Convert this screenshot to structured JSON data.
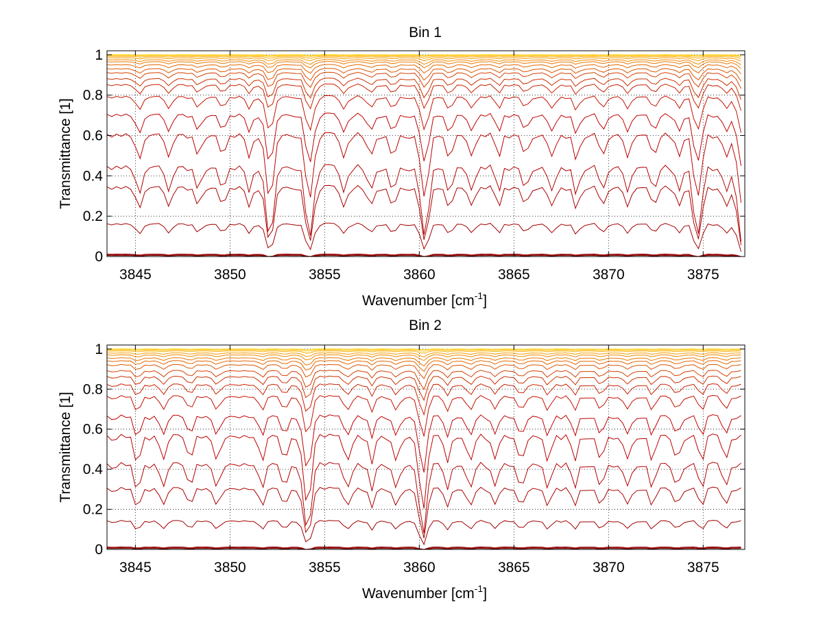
{
  "chart_data": [
    {
      "type": "line",
      "title": "Bin 1",
      "xlabel": "Wavenumber [cm",
      "xlabel_sup": "-1",
      "xlabel_tail": "]",
      "ylabel": "Transmittance [1]",
      "xlim": [
        3843.5,
        3877.2
      ],
      "ylim": [
        0,
        1.02
      ],
      "xticks": [
        3845,
        3850,
        3855,
        3860,
        3865,
        3870,
        3875
      ],
      "yticks": [
        0,
        0.2,
        0.4,
        0.6,
        0.8,
        1
      ],
      "ytick_labels": [
        "0",
        "0.2",
        "0.4",
        "0.6",
        "0.8",
        "1"
      ],
      "grid": "dotted",
      "line_profiles": {
        "x_step": 0.25,
        "strong_lines": [
          3852.1,
          3854.2,
          3860.3,
          3874.7,
          3877.0
        ],
        "medium_lines": [
          3845.2,
          3846.8,
          3848.3,
          3849.6,
          3851.0,
          3856.0,
          3857.4,
          3858.6,
          3861.6,
          3862.8,
          3864.2,
          3865.6,
          3867.0,
          3868.3,
          3869.7,
          3871.0,
          3872.4,
          3873.7,
          3876.2
        ]
      },
      "series_base_levels": [
        0.005,
        0.008,
        0.012,
        0.16,
        0.34,
        0.44,
        0.6,
        0.7,
        0.79,
        0.85,
        0.88,
        0.91,
        0.93,
        0.95,
        0.965,
        0.975,
        0.985,
        0.992,
        0.997,
        1.0
      ],
      "series_colors": [
        "#7f0000",
        "#8b0000",
        "#990000",
        "#a00000",
        "#aa0000",
        "#b30000",
        "#bb0000",
        "#c00000",
        "#c41000",
        "#c82000",
        "#cc3000",
        "#d54000",
        "#dd5500",
        "#e46600",
        "#ea7700",
        "#f08800",
        "#f59a00",
        "#f9ac00",
        "#fbbe00",
        "#ffd000"
      ]
    },
    {
      "type": "line",
      "title": "Bin 2",
      "xlabel": "Wavenumber [cm",
      "xlabel_sup": "-1",
      "xlabel_tail": "]",
      "ylabel": "Transmittance [1]",
      "xlim": [
        3843.5,
        3877.2
      ],
      "ylim": [
        0,
        1.02
      ],
      "xticks": [
        3845,
        3850,
        3855,
        3860,
        3865,
        3870,
        3875
      ],
      "yticks": [
        0,
        0.2,
        0.4,
        0.6,
        0.8,
        1
      ],
      "ytick_labels": [
        "0",
        "0.2",
        "0.4",
        "0.6",
        "0.8",
        "1"
      ],
      "grid": "dotted",
      "line_profiles": {
        "x_step": 0.25,
        "strong_lines": [
          3854.1,
          3860.2
        ],
        "medium_lines": [
          3845.1,
          3846.5,
          3847.9,
          3849.3,
          3851.7,
          3852.9,
          3856.2,
          3857.5,
          3858.8,
          3861.5,
          3862.7,
          3864.0,
          3865.4,
          3866.8,
          3868.2,
          3869.6,
          3871.0,
          3872.3,
          3873.6,
          3874.9,
          3876.2
        ]
      },
      "series_base_levels": [
        0.005,
        0.008,
        0.012,
        0.14,
        0.3,
        0.42,
        0.56,
        0.66,
        0.76,
        0.82,
        0.86,
        0.89,
        0.92,
        0.94,
        0.955,
        0.97,
        0.98,
        0.99,
        0.996,
        1.0
      ],
      "series_colors": [
        "#7f0000",
        "#8b0000",
        "#990000",
        "#a00000",
        "#aa0000",
        "#b30000",
        "#bb0000",
        "#c00000",
        "#c41000",
        "#c82000",
        "#cc3000",
        "#d54000",
        "#dd5500",
        "#e46600",
        "#ea7700",
        "#f08800",
        "#f59a00",
        "#f9ac00",
        "#fbbe00",
        "#ffd000"
      ]
    }
  ]
}
